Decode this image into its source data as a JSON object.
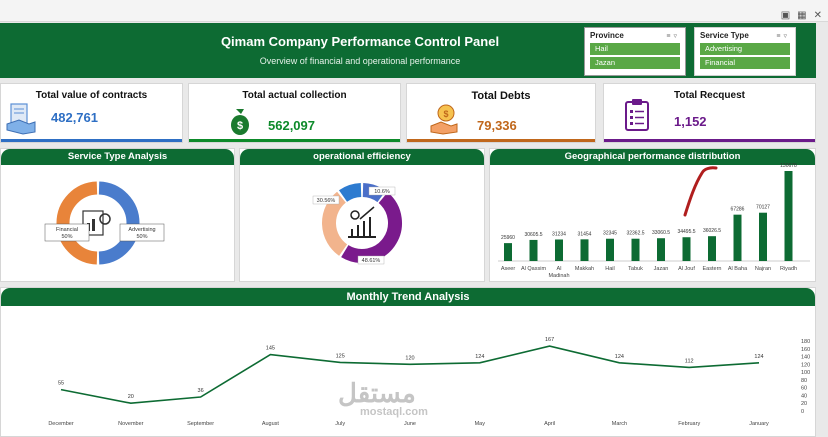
{
  "header": {
    "title": "Qimam Company Performance Control Panel",
    "subtitle": "Overview of financial and operational performance"
  },
  "slicers": {
    "province": {
      "title": "Province",
      "options": [
        "Hail",
        "Jazan"
      ]
    },
    "service_type": {
      "title": "Service Type",
      "options": [
        "Advertising",
        "Financial"
      ]
    }
  },
  "kpis": {
    "contracts": {
      "label": "Total value of contracts",
      "value": "482,761",
      "icon": "contract-handshake-icon",
      "color": "#2e6fc4"
    },
    "collection": {
      "label": "Total actual collection",
      "value": "562,097",
      "icon": "money-bag-icon",
      "color": "#0d8a2a"
    },
    "debts": {
      "label": "Total Debts",
      "value": "79,336",
      "icon": "debt-hand-icon",
      "color": "#c0671b"
    },
    "requests": {
      "label": "Total Recquest",
      "value": "1,152",
      "icon": "clipboard-list-icon",
      "color": "#6b1a8a"
    }
  },
  "panels": {
    "service": "Service Type Analysis",
    "efficiency": "operational efficiency",
    "geo": "Geographical performance distribution",
    "trend": "Monthly Trend Analysis"
  },
  "chart_data": [
    {
      "type": "pie",
      "title": "Service Type Analysis",
      "categories": [
        "Financial",
        "Advertising"
      ],
      "values": [
        50,
        50
      ],
      "labels": [
        "Financial\n50%",
        "Advertising\n50%"
      ],
      "colors": [
        "#e8843a",
        "#4a7ccc"
      ]
    },
    {
      "type": "pie",
      "title": "operational efficiency",
      "values": [
        10.6,
        48.61,
        30.56,
        10.23
      ],
      "labels": [
        "10.6%",
        "48.61%",
        "30.56%",
        ""
      ],
      "colors": [
        "#4a6fc9",
        "#7a1a8c",
        "#f2b48d",
        "#2d7bd0"
      ]
    },
    {
      "type": "bar",
      "title": "Geographical performance distribution",
      "categories": [
        "Aseer",
        "Al Qassim",
        "Al Madinah",
        "Makkah",
        "Hail",
        "Tabuk",
        "Jazan",
        "Al Jouf",
        "Eastern",
        "Al Baha",
        "Najran",
        "Riyadh"
      ],
      "values": [
        25960,
        30605.5,
        31234,
        31454,
        32345,
        32362.5,
        33060.5,
        34495.5,
        36026.5,
        67286,
        70127,
        130678
      ],
      "value_labels": [
        "25960",
        "30605.5",
        "31234",
        "31454",
        "32345",
        "32362.5",
        "33060.5",
        "34495.5",
        "36026.5",
        "67286",
        "70127",
        "130678"
      ],
      "color": "#0d6b33"
    },
    {
      "type": "line",
      "title": "Monthly Trend Analysis",
      "categories": [
        "December",
        "November",
        "September",
        "August",
        "July",
        "June",
        "May",
        "April",
        "March",
        "February",
        "January"
      ],
      "values": [
        55,
        20,
        36,
        145,
        125,
        120,
        124,
        167,
        124,
        112,
        124
      ],
      "ylim": [
        0,
        180
      ],
      "yticks": [
        0,
        20,
        40,
        60,
        80,
        100,
        120,
        140,
        160,
        180
      ],
      "color": "#0d6b33"
    }
  ],
  "watermark": {
    "arabic": "مستقل",
    "latin": "mostaql.com"
  }
}
